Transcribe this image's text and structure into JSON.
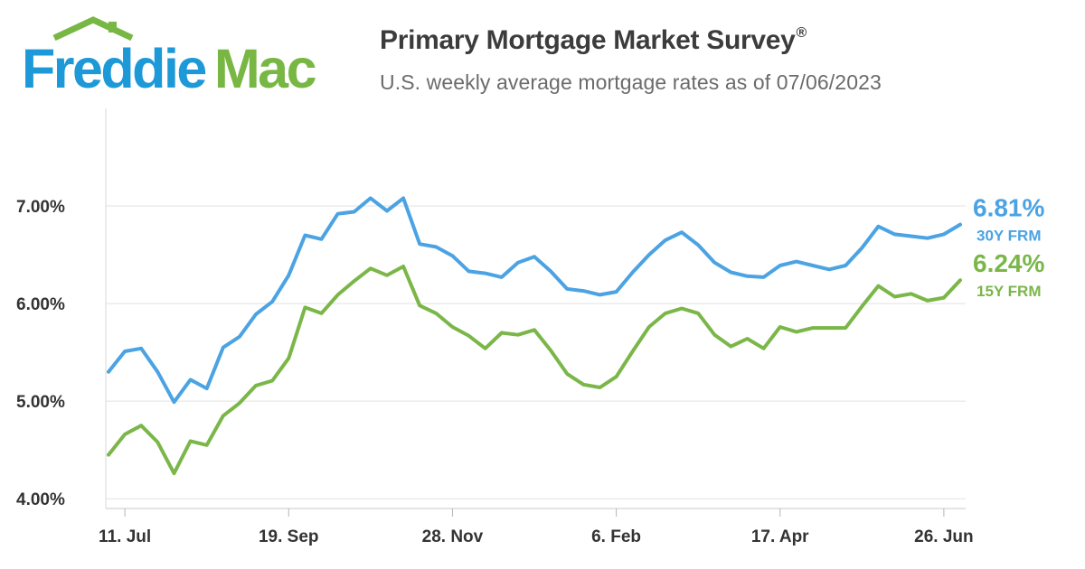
{
  "brand": {
    "name_part1": "Freddie",
    "name_part2": "Mac",
    "blue": "#1d99d8",
    "green": "#78b743"
  },
  "header": {
    "title": "Primary Mortgage Market Survey",
    "title_mark": "®",
    "subtitle": "U.S. weekly average mortgage rates as of 07/06/2023"
  },
  "chart_data": {
    "type": "line",
    "title": "Primary Mortgage Market Survey",
    "subtitle": "U.S. weekly average mortgage rates as of 07/06/2023",
    "xlabel": "",
    "ylabel": "",
    "x": [
      "2022-07-07",
      "2022-07-14",
      "2022-07-21",
      "2022-07-28",
      "2022-08-04",
      "2022-08-11",
      "2022-08-18",
      "2022-08-25",
      "2022-09-01",
      "2022-09-08",
      "2022-09-15",
      "2022-09-22",
      "2022-09-29",
      "2022-10-06",
      "2022-10-13",
      "2022-10-20",
      "2022-10-27",
      "2022-11-03",
      "2022-11-10",
      "2022-11-17",
      "2022-11-23",
      "2022-12-01",
      "2022-12-08",
      "2022-12-15",
      "2022-12-22",
      "2022-12-29",
      "2023-01-05",
      "2023-01-12",
      "2023-01-19",
      "2023-01-26",
      "2023-02-02",
      "2023-02-09",
      "2023-02-16",
      "2023-02-23",
      "2023-03-02",
      "2023-03-09",
      "2023-03-16",
      "2023-03-23",
      "2023-03-30",
      "2023-04-06",
      "2023-04-13",
      "2023-04-20",
      "2023-04-27",
      "2023-05-04",
      "2023-05-11",
      "2023-05-18",
      "2023-05-25",
      "2023-06-01",
      "2023-06-08",
      "2023-06-15",
      "2023-06-22",
      "2023-06-29",
      "2023-07-06"
    ],
    "x_ticks": [
      {
        "index": 1,
        "label": "11. Jul"
      },
      {
        "index": 11,
        "label": "19. Sep"
      },
      {
        "index": 21,
        "label": "28. Nov"
      },
      {
        "index": 31,
        "label": "6. Feb"
      },
      {
        "index": 41,
        "label": "17. Apr"
      },
      {
        "index": 51,
        "label": "26. Jun"
      }
    ],
    "y_ticks": [
      {
        "value": 4,
        "label": "4.00%"
      },
      {
        "value": 5,
        "label": "5.00%"
      },
      {
        "value": 6,
        "label": "6.00%"
      },
      {
        "value": 7,
        "label": "7.00%"
      }
    ],
    "ylim": [
      3.9,
      8.0
    ],
    "grid": true,
    "legend": "right end labels",
    "series": [
      {
        "name": "30Y FRM",
        "label": "30Y FRM",
        "last_label": "6.81%",
        "color": "#4ba3e3",
        "values": [
          5.3,
          5.51,
          5.54,
          5.3,
          4.99,
          5.22,
          5.13,
          5.55,
          5.66,
          5.89,
          6.02,
          6.29,
          6.7,
          6.66,
          6.92,
          6.94,
          7.08,
          6.95,
          7.08,
          6.61,
          6.58,
          6.49,
          6.33,
          6.31,
          6.27,
          6.42,
          6.48,
          6.33,
          6.15,
          6.13,
          6.09,
          6.12,
          6.32,
          6.5,
          6.65,
          6.73,
          6.6,
          6.42,
          6.32,
          6.28,
          6.27,
          6.39,
          6.43,
          6.39,
          6.35,
          6.39,
          6.57,
          6.79,
          6.71,
          6.69,
          6.67,
          6.71,
          6.81
        ]
      },
      {
        "name": "15Y FRM",
        "label": "15Y FRM",
        "last_label": "6.24%",
        "color": "#7ab648",
        "values": [
          4.45,
          4.66,
          4.75,
          4.58,
          4.26,
          4.59,
          4.55,
          4.85,
          4.98,
          5.16,
          5.21,
          5.44,
          5.96,
          5.9,
          6.09,
          6.23,
          6.36,
          6.29,
          6.38,
          5.98,
          5.9,
          5.76,
          5.67,
          5.54,
          5.7,
          5.68,
          5.73,
          5.52,
          5.28,
          5.17,
          5.14,
          5.25,
          5.51,
          5.76,
          5.9,
          5.95,
          5.9,
          5.68,
          5.56,
          5.64,
          5.54,
          5.76,
          5.71,
          5.75,
          5.75,
          5.75,
          5.97,
          6.18,
          6.07,
          6.1,
          6.03,
          6.06,
          6.24
        ]
      }
    ]
  }
}
